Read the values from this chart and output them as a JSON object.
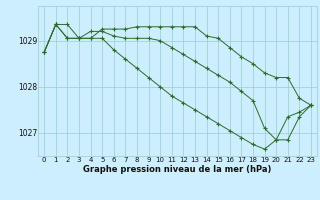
{
  "title": "Graphe pression niveau de la mer (hPa)",
  "hours": [
    0,
    1,
    2,
    3,
    4,
    5,
    6,
    7,
    8,
    9,
    10,
    11,
    12,
    13,
    14,
    15,
    16,
    17,
    18,
    19,
    20,
    21,
    22,
    23
  ],
  "line1": [
    1028.75,
    1029.35,
    1029.35,
    1029.05,
    1029.05,
    1029.25,
    1029.25,
    1029.25,
    1029.3,
    1029.3,
    1029.3,
    1029.3,
    1029.3,
    1029.3,
    1029.1,
    1029.05,
    1028.85,
    1028.65,
    1028.5,
    1028.3,
    1028.2,
    1028.2,
    1027.75,
    1027.6
  ],
  "line2": [
    1028.75,
    1029.35,
    1029.05,
    1029.05,
    1029.2,
    1029.2,
    1029.1,
    1029.05,
    1029.05,
    1029.05,
    1029.0,
    1028.85,
    1028.7,
    1028.55,
    1028.4,
    1028.25,
    1028.1,
    1027.9,
    1027.7,
    1027.1,
    1026.85,
    1026.85,
    1027.35,
    1027.6
  ],
  "line3": [
    1028.75,
    1029.35,
    1029.05,
    1029.05,
    1029.05,
    1029.05,
    1028.8,
    1028.6,
    1028.4,
    1028.2,
    1028.0,
    1027.8,
    1027.65,
    1027.5,
    1027.35,
    1027.2,
    1027.05,
    1026.9,
    1026.75,
    1026.65,
    1026.85,
    1027.35,
    1027.45,
    1027.6
  ],
  "line_color": "#2d6a2d",
  "bg_color": "#cceeff",
  "grid_color": "#99cccc",
  "ylim_min": 1026.5,
  "ylim_max": 1029.75,
  "yticks": [
    1027,
    1028,
    1029
  ],
  "xticks": [
    0,
    1,
    2,
    3,
    4,
    5,
    6,
    7,
    8,
    9,
    10,
    11,
    12,
    13,
    14,
    15,
    16,
    17,
    18,
    19,
    20,
    21,
    22,
    23
  ],
  "xlabel": "Graphe pression niveau de la mer (hPa)",
  "xlabel_fontsize": 6.0,
  "tick_fontsize": 5.0,
  "ytick_fontsize": 5.5,
  "marker_size": 3,
  "linewidth": 0.7
}
